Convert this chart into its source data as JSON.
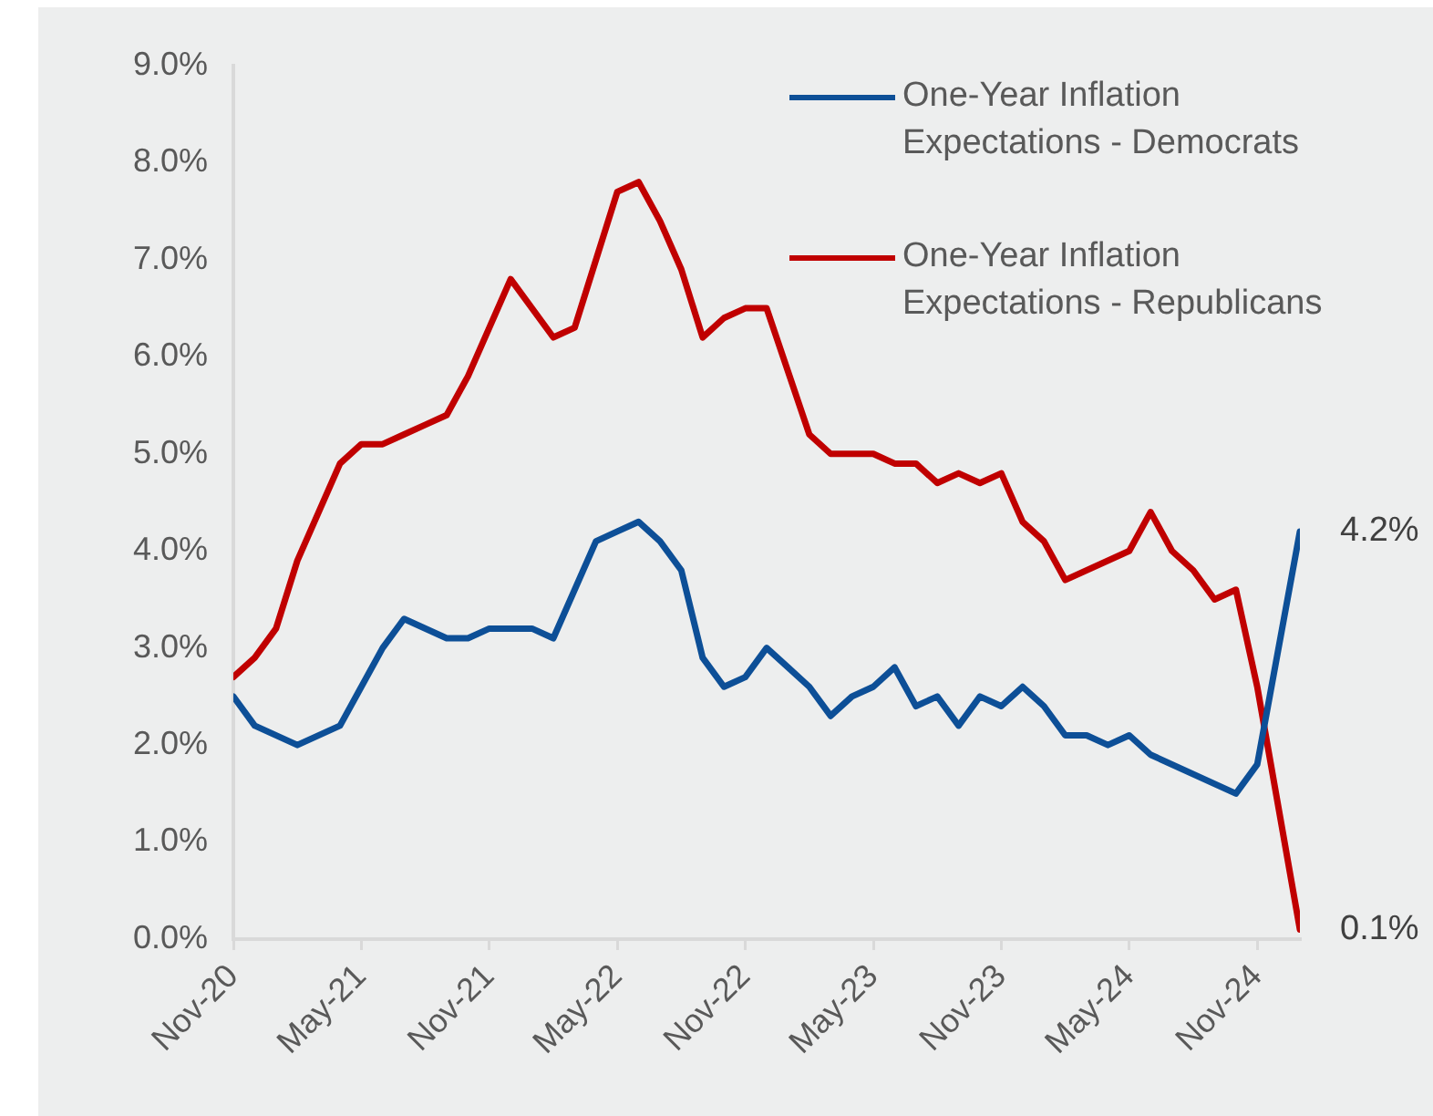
{
  "chart_data": {
    "type": "line",
    "xlim": [
      "2020-11",
      "2025-01"
    ],
    "xticks": [
      {
        "value": "2020-11",
        "label": "Nov-20"
      },
      {
        "value": "2021-05",
        "label": "May-21"
      },
      {
        "value": "2021-11",
        "label": "Nov-21"
      },
      {
        "value": "2022-05",
        "label": "May-22"
      },
      {
        "value": "2022-11",
        "label": "Nov-22"
      },
      {
        "value": "2023-05",
        "label": "May-23"
      },
      {
        "value": "2023-11",
        "label": "Nov-23"
      },
      {
        "value": "2024-05",
        "label": "May-24"
      },
      {
        "value": "2024-11",
        "label": "Nov-24"
      }
    ],
    "ylim": [
      0,
      9
    ],
    "yticks": [
      {
        "value": 0,
        "label": "0.0%"
      },
      {
        "value": 1,
        "label": "1.0%"
      },
      {
        "value": 2,
        "label": "2.0%"
      },
      {
        "value": 3,
        "label": "3.0%"
      },
      {
        "value": 4,
        "label": "4.0%"
      },
      {
        "value": 5,
        "label": "5.0%"
      },
      {
        "value": 6,
        "label": "6.0%"
      },
      {
        "value": 7,
        "label": "7.0%"
      },
      {
        "value": 8,
        "label": "8.0%"
      },
      {
        "value": 9,
        "label": "9.0%"
      }
    ],
    "legend": "top right",
    "marker": "none",
    "line_style": "solid",
    "series": [
      {
        "name": "One-Year Inflation Expectations - Democrats",
        "color": "#0d4f97",
        "x": [
          "2020-11",
          "2020-12",
          "2021-02",
          "2021-04",
          "2021-06",
          "2021-07",
          "2021-09",
          "2021-10",
          "2021-11",
          "2022-01",
          "2022-02",
          "2022-04",
          "2022-05",
          "2022-06",
          "2022-07",
          "2022-08",
          "2022-09",
          "2022-10",
          "2022-11",
          "2022-12",
          "2023-01",
          "2023-02",
          "2023-03",
          "2023-04",
          "2023-05",
          "2023-06",
          "2023-07",
          "2023-08",
          "2023-09",
          "2023-10",
          "2023-11",
          "2023-12",
          "2024-01",
          "2024-02",
          "2024-03",
          "2024-04",
          "2024-05",
          "2024-06",
          "2024-10",
          "2024-11",
          "2025-01"
        ],
        "values": [
          2.5,
          2.2,
          2.0,
          2.2,
          3.0,
          3.3,
          3.1,
          3.1,
          3.2,
          3.2,
          3.1,
          4.1,
          4.2,
          4.3,
          4.1,
          3.8,
          2.9,
          2.6,
          2.7,
          3.0,
          2.8,
          2.6,
          2.3,
          2.5,
          2.6,
          2.8,
          2.4,
          2.5,
          2.2,
          2.5,
          2.4,
          2.6,
          2.4,
          2.1,
          2.1,
          2.0,
          2.1,
          1.9,
          1.5,
          1.8,
          4.2
        ],
        "value_labels": [
          null,
          null,
          null,
          null,
          null,
          null,
          null,
          null,
          null,
          null,
          null,
          null,
          null,
          null,
          null,
          null,
          null,
          null,
          null,
          null,
          null,
          null,
          null,
          null,
          null,
          null,
          null,
          null,
          null,
          null,
          null,
          null,
          null,
          null,
          null,
          null,
          null,
          null,
          null,
          null,
          "4.2%"
        ]
      },
      {
        "name": "One-Year Inflation Expectations - Republicans",
        "color": "#c00000",
        "x": [
          "2020-11",
          "2020-12",
          "2021-01",
          "2021-02",
          "2021-03",
          "2021-04",
          "2021-05",
          "2021-06",
          "2021-07",
          "2021-08",
          "2021-09",
          "2021-10",
          "2021-11",
          "2021-12",
          "2022-02",
          "2022-03",
          "2022-04",
          "2022-05",
          "2022-06",
          "2022-07",
          "2022-08",
          "2022-09",
          "2022-10",
          "2022-11",
          "2022-12",
          "2023-02",
          "2023-03",
          "2023-04",
          "2023-05",
          "2023-06",
          "2023-07",
          "2023-08",
          "2023-09",
          "2023-10",
          "2023-11",
          "2023-12",
          "2024-01",
          "2024-02",
          "2024-05",
          "2024-06",
          "2024-07",
          "2024-08",
          "2024-09",
          "2024-10",
          "2024-11",
          "2025-01"
        ],
        "values": [
          2.7,
          2.9,
          3.2,
          3.9,
          4.4,
          4.9,
          5.1,
          5.1,
          5.2,
          5.3,
          5.4,
          5.8,
          6.3,
          6.8,
          6.2,
          6.3,
          7.0,
          7.7,
          7.8,
          7.4,
          6.9,
          6.2,
          6.4,
          6.5,
          6.5,
          5.2,
          5.0,
          5.0,
          5.0,
          4.9,
          4.9,
          4.7,
          4.8,
          4.7,
          4.8,
          4.3,
          4.1,
          3.7,
          4.0,
          4.4,
          4.0,
          3.8,
          3.5,
          3.6,
          2.6,
          0.1
        ],
        "value_labels": [
          null,
          null,
          null,
          null,
          null,
          null,
          null,
          null,
          null,
          null,
          null,
          null,
          null,
          null,
          null,
          null,
          null,
          null,
          null,
          null,
          null,
          null,
          null,
          null,
          null,
          null,
          null,
          null,
          null,
          null,
          null,
          null,
          null,
          null,
          null,
          null,
          null,
          null,
          null,
          null,
          null,
          null,
          null,
          null,
          null,
          "0.1%"
        ]
      }
    ]
  }
}
